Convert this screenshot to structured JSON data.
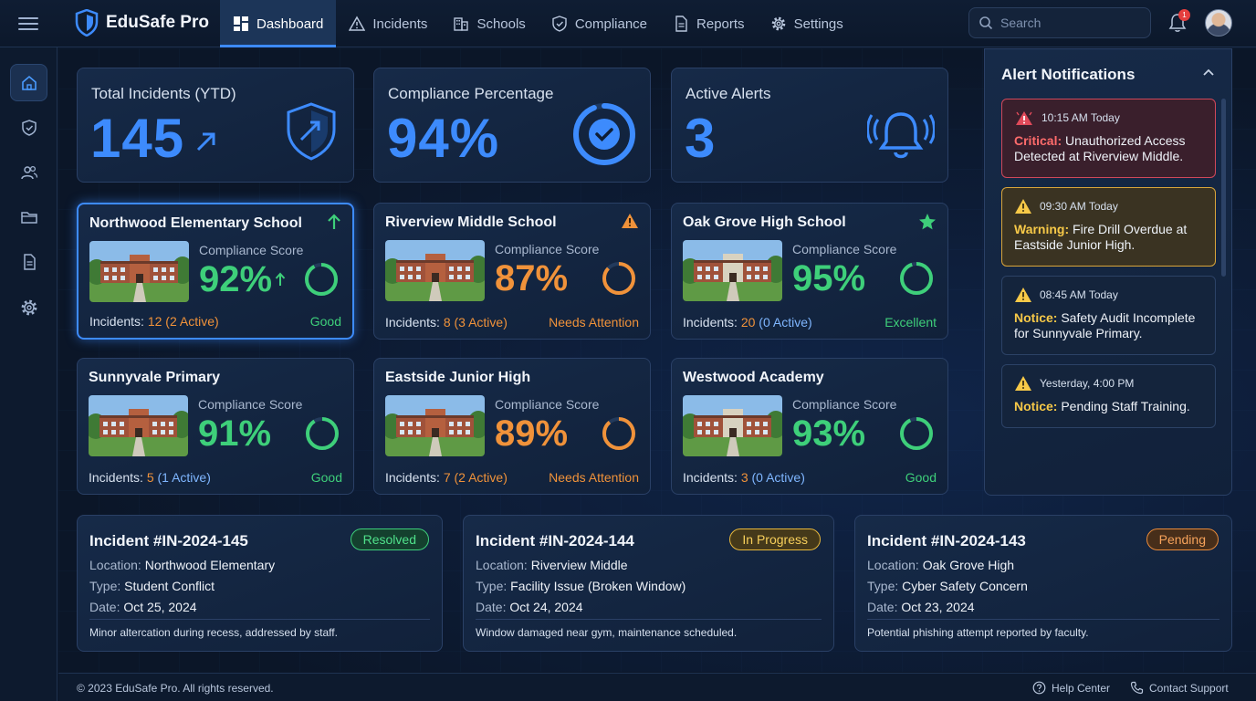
{
  "app": {
    "name": "EduSafe Pro"
  },
  "nav": [
    {
      "label": "Dashboard",
      "icon": "dashboard-icon"
    },
    {
      "label": "Incidents",
      "icon": "warning-icon"
    },
    {
      "label": "Schools",
      "icon": "building-icon"
    },
    {
      "label": "Compliance",
      "icon": "shield-check-icon"
    },
    {
      "label": "Reports",
      "icon": "document-icon"
    },
    {
      "label": "Settings",
      "icon": "gear-icon"
    }
  ],
  "search": {
    "placeholder": "Search"
  },
  "notifications": {
    "count": "1"
  },
  "sidebar": [
    "home-icon",
    "shield-check-icon",
    "users-icon",
    "folder-icon",
    "document-icon",
    "gear-icon"
  ],
  "stats": {
    "total_incidents": {
      "title": "Total Incidents (YTD)",
      "value": "145"
    },
    "compliance": {
      "title": "Compliance Percentage",
      "value": "94%",
      "fraction": 0.94
    },
    "alerts": {
      "title": "Active Alerts",
      "value": "3"
    }
  },
  "schools": [
    {
      "name": "Northwood Elementary School",
      "score_label": "Compliance Score",
      "score": "92%",
      "fraction": 0.92,
      "incidents_label": "Incidents:",
      "incidents": "12 (2 Active)",
      "status": "Good",
      "flag": "up-arrow-icon"
    },
    {
      "name": "Riverview Middle School",
      "score_label": "Compliance Score",
      "score": "87%",
      "fraction": 0.87,
      "incidents_label": "Incidents:",
      "incidents": "8 (3 Active)",
      "status": "Needs Attention",
      "flag": "warning-icon"
    },
    {
      "name": "Oak Grove High School",
      "score_label": "Compliance Score",
      "score": "95%",
      "fraction": 0.95,
      "incidents_label": "Incidents:",
      "incidents_count": "20",
      "incidents_active": "(0 Active)",
      "status": "Excellent",
      "flag": "star-icon"
    },
    {
      "name": "Sunnyvale Primary",
      "score_label": "Compliance Score",
      "score": "91%",
      "fraction": 0.91,
      "incidents_label": "Incidents:",
      "incidents_count": "5",
      "incidents_active": "(1 Active)",
      "status": "Good"
    },
    {
      "name": "Eastside Junior High",
      "score_label": "Compliance Score",
      "score": "89%",
      "fraction": 0.89,
      "incidents_label": "Incidents:",
      "incidents": "7 (2 Active)",
      "status": "Needs Attention"
    },
    {
      "name": "Westwood Academy",
      "score_label": "Compliance Score",
      "score": "93%",
      "fraction": 0.93,
      "incidents_label": "Incidents:",
      "incidents_count": "3",
      "incidents_active": "(0 Active)",
      "status": "Good"
    }
  ],
  "alerts_panel": {
    "title": "Alert Notifications",
    "items": [
      {
        "time": "10:15 AM Today",
        "level": "Critical:",
        "message": "Unauthorized Access Detected at Riverview Middle."
      },
      {
        "time": "09:30 AM Today",
        "level": "Warning:",
        "message": "Fire Drill Overdue at Eastside Junior High."
      },
      {
        "time": "08:45 AM Today",
        "level": "Notice:",
        "message": "Safety Audit Incomplete for Sunnyvale Primary."
      },
      {
        "time": "Yesterday, 4:00 PM",
        "level": "Notice:",
        "message": "Pending Staff Training."
      }
    ]
  },
  "incidents": [
    {
      "title": "Incident #IN-2024-145",
      "status": "Resolved",
      "location_label": "Location:",
      "location": "Northwood Elementary",
      "type_label": "Type:",
      "type": "Student Conflict",
      "date_label": "Date:",
      "date": "Oct 25, 2024",
      "description": "Minor altercation during recess, addressed by staff."
    },
    {
      "title": "Incident #IN-2024-144",
      "status": "In Progress",
      "location_label": "Location:",
      "location": "Riverview Middle",
      "type_label": "Type:",
      "type": "Facility Issue (Broken Window)",
      "date_label": "Date:",
      "date": "Oct 24, 2024",
      "description": "Window damaged near gym, maintenance scheduled."
    },
    {
      "title": "Incident #IN-2024-143",
      "status": "Pending",
      "location_label": "Location:",
      "location": "Oak Grove High",
      "type_label": "Type:",
      "type": "Cyber Safety Concern",
      "date_label": "Date:",
      "date": "Oct 23, 2024",
      "description": "Potential phishing attempt reported by faculty."
    }
  ],
  "footer": {
    "copyright": "© 2023 EduSafe Pro. All rights reserved.",
    "help": "Help Center",
    "contact": "Contact Support"
  },
  "colors": {
    "accent": "#3d8bfd",
    "good": "#3ecf7a",
    "attention": "#f0923a",
    "critical": "#ff6b6b",
    "warning": "#f7c948"
  }
}
